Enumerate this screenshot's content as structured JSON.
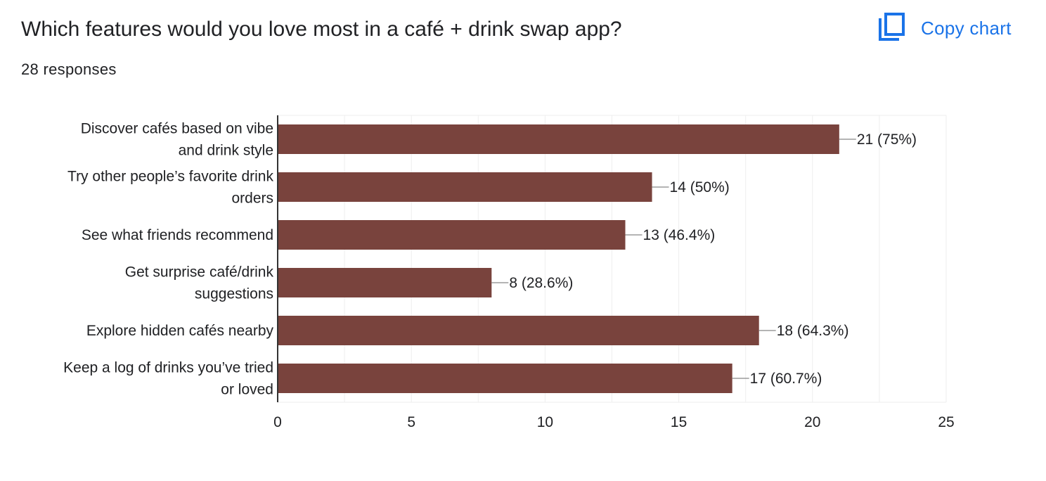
{
  "header": {
    "title": "Which features would you love most in a café + drink swap app?",
    "responses": "28 responses",
    "copy_label": "Copy chart"
  },
  "colors": {
    "bar": "#79433d",
    "accent": "#1a73e8",
    "text": "#202124",
    "grid": "#eeeeee",
    "axis": "#333333",
    "leader": "#888888"
  },
  "icons": {
    "copy": "copy-icon"
  },
  "chart_data": {
    "type": "bar",
    "orientation": "horizontal",
    "categories": [
      [
        "Discover cafés based on vibe",
        "and drink style"
      ],
      [
        "Try other people’s favorite drink",
        "orders"
      ],
      [
        "See what friends recommend"
      ],
      [
        "Get surprise café/drink",
        "suggestions"
      ],
      [
        "Explore hidden cafés nearby"
      ],
      [
        "Keep a log of drinks you’ve tried",
        "or loved"
      ]
    ],
    "values": [
      21,
      14,
      13,
      8,
      18,
      17
    ],
    "data_labels": [
      "21 (75%)",
      "14 (50%)",
      "13 (46.4%)",
      "8 (28.6%)",
      "18 (64.3%)",
      "17 (60.7%)"
    ],
    "xlim": [
      0,
      25
    ],
    "xticks": [
      0,
      5,
      10,
      15,
      20,
      25
    ],
    "grid": true
  }
}
